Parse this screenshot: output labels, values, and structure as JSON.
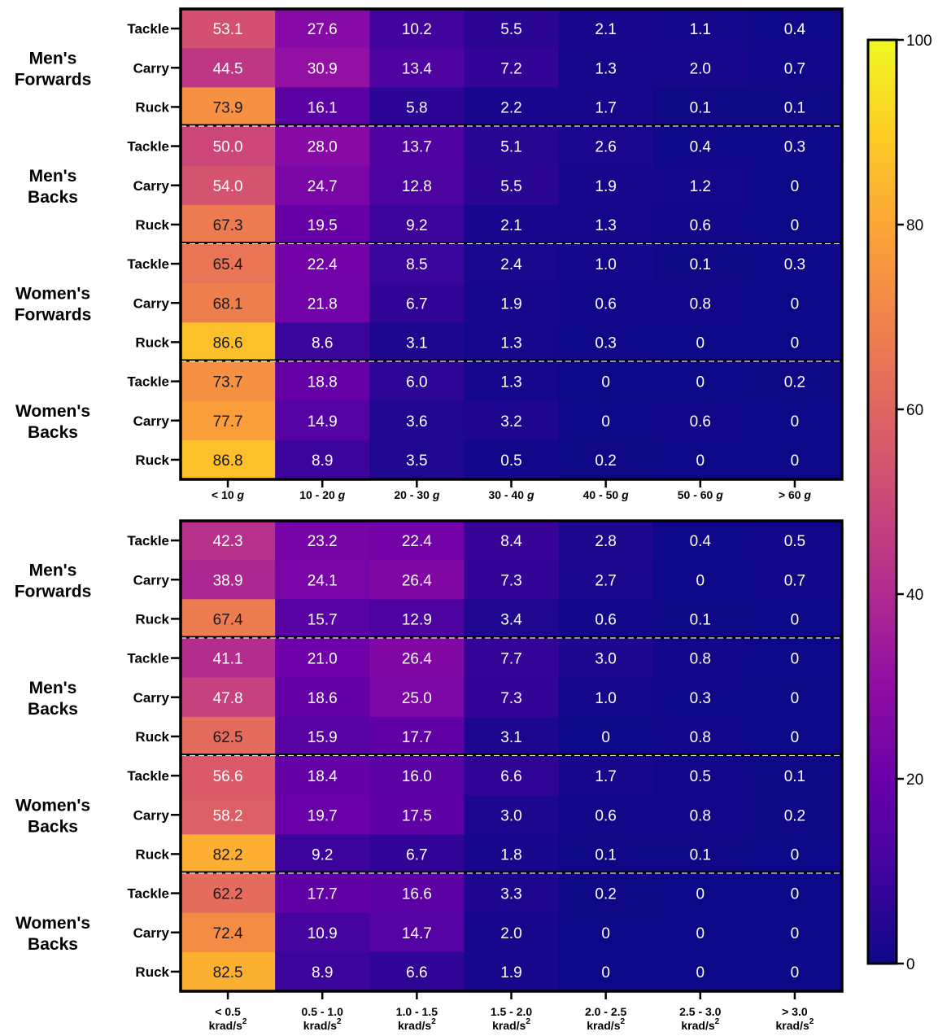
{
  "chart_data": [
    {
      "type": "heatmap",
      "categories": [
        "< 10 g",
        "10 - 20 g",
        "20 - 30 g",
        "30 - 40 g",
        "40 - 50 g",
        "50 - 60 g",
        "> 60 g"
      ],
      "x_ticks": [
        {
          "main": "< 10 ",
          "italic": "g",
          "sup": ""
        },
        {
          "main": "10 - 20 ",
          "italic": "g",
          "sup": ""
        },
        {
          "main": "20 - 30 ",
          "italic": "g",
          "sup": ""
        },
        {
          "main": "30 - 40 ",
          "italic": "g",
          "sup": ""
        },
        {
          "main": "40 - 50 ",
          "italic": "g",
          "sup": ""
        },
        {
          "main": "50 - 60 ",
          "italic": "g",
          "sup": ""
        },
        {
          "main": "> 60 ",
          "italic": "g",
          "sup": ""
        }
      ],
      "groups": [
        {
          "label": [
            "Men's",
            "Forwards"
          ],
          "rows": [
            {
              "label": "Tackle",
              "values": [
                53.1,
                27.6,
                10.2,
                5.5,
                2.1,
                1.1,
                0.4
              ],
              "display": [
                "53.1",
                "27.6",
                "10.2",
                "5.5",
                "2.1",
                "1.1",
                "0.4"
              ]
            },
            {
              "label": "Carry",
              "values": [
                44.5,
                30.9,
                13.4,
                7.2,
                1.3,
                2.0,
                0.7
              ],
              "display": [
                "44.5",
                "30.9",
                "13.4",
                "7.2",
                "1.3",
                "2.0",
                "0.7"
              ]
            },
            {
              "label": "Ruck",
              "values": [
                73.9,
                16.1,
                5.8,
                2.2,
                1.7,
                0.1,
                0.1
              ],
              "display": [
                "73.9",
                "16.1",
                "5.8",
                "2.2",
                "1.7",
                "0.1",
                "0.1"
              ]
            }
          ]
        },
        {
          "label": [
            "Men's",
            "Backs"
          ],
          "rows": [
            {
              "label": "Tackle",
              "values": [
                50.0,
                28.0,
                13.7,
                5.1,
                2.6,
                0.4,
                0.3
              ],
              "display": [
                "50.0",
                "28.0",
                "13.7",
                "5.1",
                "2.6",
                "0.4",
                "0.3"
              ]
            },
            {
              "label": "Carry",
              "values": [
                54.0,
                24.7,
                12.8,
                5.5,
                1.9,
                1.2,
                0
              ],
              "display": [
                "54.0",
                "24.7",
                "12.8",
                "5.5",
                "1.9",
                "1.2",
                "0"
              ]
            },
            {
              "label": "Ruck",
              "values": [
                67.3,
                19.5,
                9.2,
                2.1,
                1.3,
                0.6,
                0
              ],
              "display": [
                "67.3",
                "19.5",
                "9.2",
                "2.1",
                "1.3",
                "0.6",
                "0"
              ]
            }
          ]
        },
        {
          "label": [
            "Women's",
            "Forwards"
          ],
          "rows": [
            {
              "label": "Tackle",
              "values": [
                65.4,
                22.4,
                8.5,
                2.4,
                1.0,
                0.1,
                0.3
              ],
              "display": [
                "65.4",
                "22.4",
                "8.5",
                "2.4",
                "1.0",
                "0.1",
                "0.3"
              ]
            },
            {
              "label": "Carry",
              "values": [
                68.1,
                21.8,
                6.7,
                1.9,
                0.6,
                0.8,
                0
              ],
              "display": [
                "68.1",
                "21.8",
                "6.7",
                "1.9",
                "0.6",
                "0.8",
                "0"
              ]
            },
            {
              "label": "Ruck",
              "values": [
                86.6,
                8.6,
                3.1,
                1.3,
                0.3,
                0,
                0
              ],
              "display": [
                "86.6",
                "8.6",
                "3.1",
                "1.3",
                "0.3",
                "0",
                "0"
              ]
            }
          ]
        },
        {
          "label": [
            "Women's",
            "Backs"
          ],
          "rows": [
            {
              "label": "Tackle",
              "values": [
                73.7,
                18.8,
                6.0,
                1.3,
                0,
                0,
                0.2
              ],
              "display": [
                "73.7",
                "18.8",
                "6.0",
                "1.3",
                "0",
                "0",
                "0.2"
              ]
            },
            {
              "label": "Carry",
              "values": [
                77.7,
                14.9,
                3.6,
                3.2,
                0,
                0.6,
                0
              ],
              "display": [
                "77.7",
                "14.9",
                "3.6",
                "3.2",
                "0",
                "0.6",
                "0"
              ]
            },
            {
              "label": "Ruck",
              "values": [
                86.8,
                8.9,
                3.5,
                0.5,
                0.2,
                0,
                0
              ],
              "display": [
                "86.8",
                "8.9",
                "3.5",
                "0.5",
                "0.2",
                "0",
                "0"
              ]
            }
          ]
        }
      ]
    },
    {
      "type": "heatmap",
      "categories": [
        "< 0.5 krad/s2",
        "0.5 - 1.0 krad/s2",
        "1.0 - 1.5 krad/s2",
        "1.5 - 2.0 krad/s2",
        "2.0 - 2.5 krad/s2",
        "2.5 - 3.0 krad/s2",
        "> 3.0 krad/s2"
      ],
      "x_ticks": [
        {
          "main": "< 0.5",
          "italic": "",
          "sup": "krad/s",
          "exp": "2"
        },
        {
          "main": "0.5 - 1.0",
          "italic": "",
          "sup": "krad/s",
          "exp": "2"
        },
        {
          "main": "1.0 - 1.5",
          "italic": "",
          "sup": "krad/s",
          "exp": "2"
        },
        {
          "main": "1.5 - 2.0",
          "italic": "",
          "sup": "krad/s",
          "exp": "2"
        },
        {
          "main": "2.0 - 2.5",
          "italic": "",
          "sup": "krad/s",
          "exp": "2"
        },
        {
          "main": "2.5 - 3.0",
          "italic": "",
          "sup": "krad/s",
          "exp": "2"
        },
        {
          "main": "> 3.0",
          "italic": "",
          "sup": "krad/s",
          "exp": "2"
        }
      ],
      "groups": [
        {
          "label": [
            "Men's",
            "Forwards"
          ],
          "rows": [
            {
              "label": "Tackle",
              "values": [
                42.3,
                23.2,
                22.4,
                8.4,
                2.8,
                0.4,
                0.5
              ],
              "display": [
                "42.3",
                "23.2",
                "22.4",
                "8.4",
                "2.8",
                "0.4",
                "0.5"
              ]
            },
            {
              "label": "Carry",
              "values": [
                38.9,
                24.1,
                26.4,
                7.3,
                2.7,
                0,
                0.7
              ],
              "display": [
                "38.9",
                "24.1",
                "26.4",
                "7.3",
                "2.7",
                "0",
                "0.7"
              ]
            },
            {
              "label": "Ruck",
              "values": [
                67.4,
                15.7,
                12.9,
                3.4,
                0.6,
                0.1,
                0
              ],
              "display": [
                "67.4",
                "15.7",
                "12.9",
                "3.4",
                "0.6",
                "0.1",
                "0"
              ]
            }
          ]
        },
        {
          "label": [
            "Men's",
            "Backs"
          ],
          "rows": [
            {
              "label": "Tackle",
              "values": [
                41.1,
                21.0,
                26.4,
                7.7,
                3.0,
                0.8,
                0
              ],
              "display": [
                "41.1",
                "21.0",
                "26.4",
                "7.7",
                "3.0",
                "0.8",
                "0"
              ]
            },
            {
              "label": "Carry",
              "values": [
                47.8,
                18.6,
                25.0,
                7.3,
                1.0,
                0.3,
                0
              ],
              "display": [
                "47.8",
                "18.6",
                "25.0",
                "7.3",
                "1.0",
                "0.3",
                "0"
              ]
            },
            {
              "label": "Ruck",
              "values": [
                62.5,
                15.9,
                17.7,
                3.1,
                0,
                0.8,
                0
              ],
              "display": [
                "62.5",
                "15.9",
                "17.7",
                "3.1",
                "0",
                "0.8",
                "0"
              ]
            }
          ]
        },
        {
          "label": [
            "Women's",
            "Backs"
          ],
          "rows": [
            {
              "label": "Tackle",
              "values": [
                56.6,
                18.4,
                16.0,
                6.6,
                1.7,
                0.5,
                0.1
              ],
              "display": [
                "56.6",
                "18.4",
                "16.0",
                "6.6",
                "1.7",
                "0.5",
                "0.1"
              ]
            },
            {
              "label": "Carry",
              "values": [
                58.2,
                19.7,
                17.5,
                3.0,
                0.6,
                0.8,
                0.2
              ],
              "display": [
                "58.2",
                "19.7",
                "17.5",
                "3.0",
                "0.6",
                "0.8",
                "0.2"
              ]
            },
            {
              "label": "Ruck",
              "values": [
                82.2,
                9.2,
                6.7,
                1.8,
                0.1,
                0.1,
                0
              ],
              "display": [
                "82.2",
                "9.2",
                "6.7",
                "1.8",
                "0.1",
                "0.1",
                "0"
              ]
            }
          ]
        },
        {
          "label": [
            "Women's",
            "Backs"
          ],
          "rows": [
            {
              "label": "Tackle",
              "values": [
                62.2,
                17.7,
                16.6,
                3.3,
                0.2,
                0,
                0
              ],
              "display": [
                "62.2",
                "17.7",
                "16.6",
                "3.3",
                "0.2",
                "0",
                "0"
              ]
            },
            {
              "label": "Carry",
              "values": [
                72.4,
                10.9,
                14.7,
                2.0,
                0,
                0,
                0
              ],
              "display": [
                "72.4",
                "10.9",
                "14.7",
                "2.0",
                "0",
                "0",
                "0"
              ]
            },
            {
              "label": "Ruck",
              "values": [
                82.5,
                8.9,
                6.6,
                1.9,
                0,
                0,
                0
              ],
              "display": [
                "82.5",
                "8.9",
                "6.6",
                "1.9",
                "0",
                "0",
                "0"
              ]
            }
          ]
        }
      ]
    }
  ],
  "colorbar": {
    "colormap": "plasma",
    "range": [
      0,
      100
    ],
    "tick_values": [
      0,
      20,
      40,
      60,
      80,
      100
    ],
    "tick_labels": [
      "0",
      "20",
      "40",
      "60",
      "80",
      "100"
    ]
  }
}
